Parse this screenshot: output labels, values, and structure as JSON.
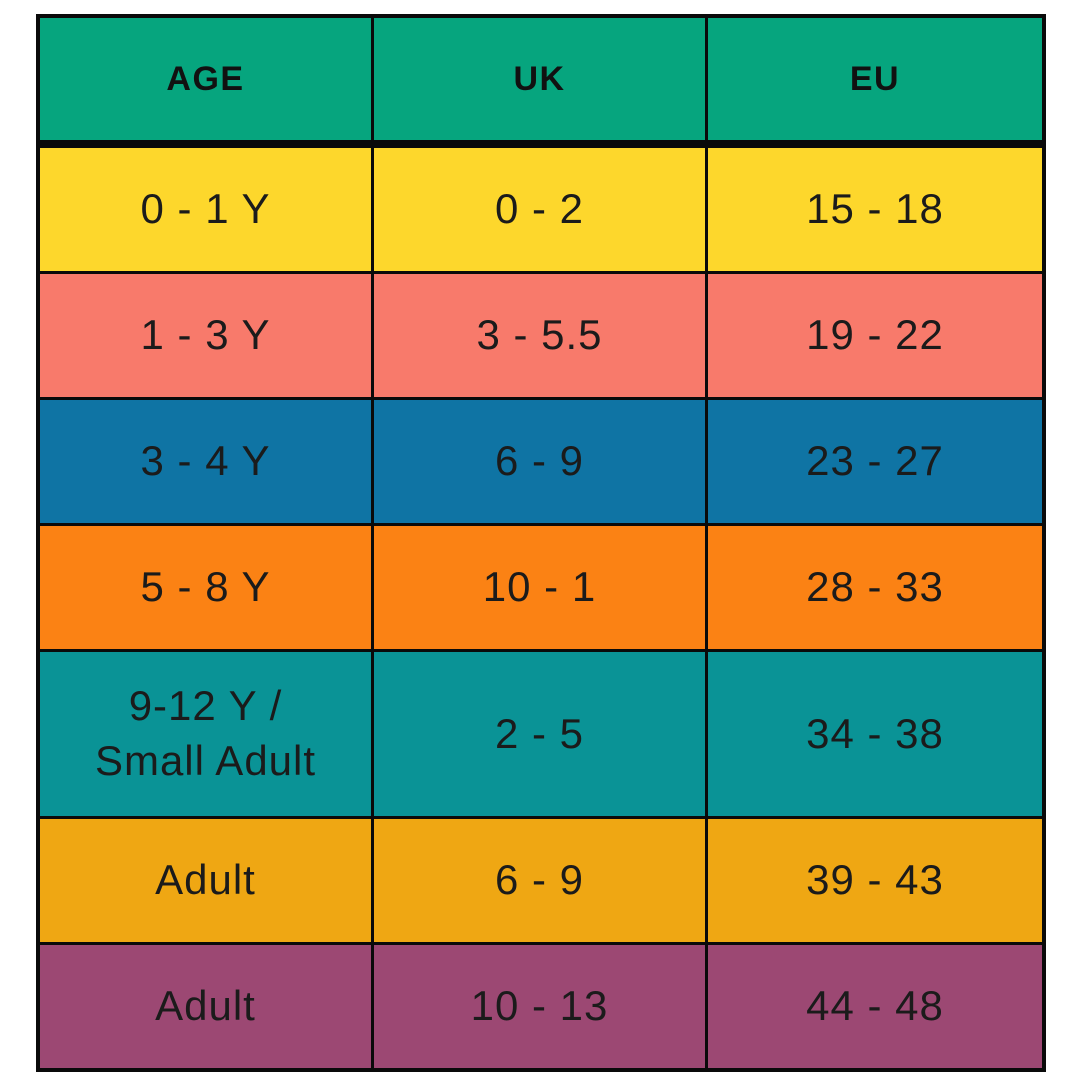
{
  "chart_data": {
    "type": "table",
    "columns": [
      "AGE",
      "UK",
      "EU"
    ],
    "header_color": "#06A57E",
    "border_color": "#0a0a0a",
    "text_color": "#1b1b1b",
    "rows": [
      {
        "age": "0 - 1 Y",
        "uk": "0 - 2",
        "eu": "15 - 18",
        "color": "#FDD72C"
      },
      {
        "age": "1 - 3 Y",
        "uk": "3 - 5.5",
        "eu": "19 - 22",
        "color": "#F87A6B"
      },
      {
        "age": "3 - 4 Y",
        "uk": "6 - 9",
        "eu": "23 - 27",
        "color": "#0F74A4"
      },
      {
        "age": "5 - 8 Y",
        "uk": "10 - 1",
        "eu": "28 - 33",
        "color": "#FB8214"
      },
      {
        "age": "9-12 Y /\nSmall Adult",
        "uk": "2 - 5",
        "eu": "34 - 38",
        "color": "#0A9396"
      },
      {
        "age": "Adult",
        "uk": "6 - 9",
        "eu": "39 - 43",
        "color": "#EFA713"
      },
      {
        "age": "Adult",
        "uk": "10 - 13",
        "eu": "44 - 48",
        "color": "#9C4873"
      }
    ]
  }
}
